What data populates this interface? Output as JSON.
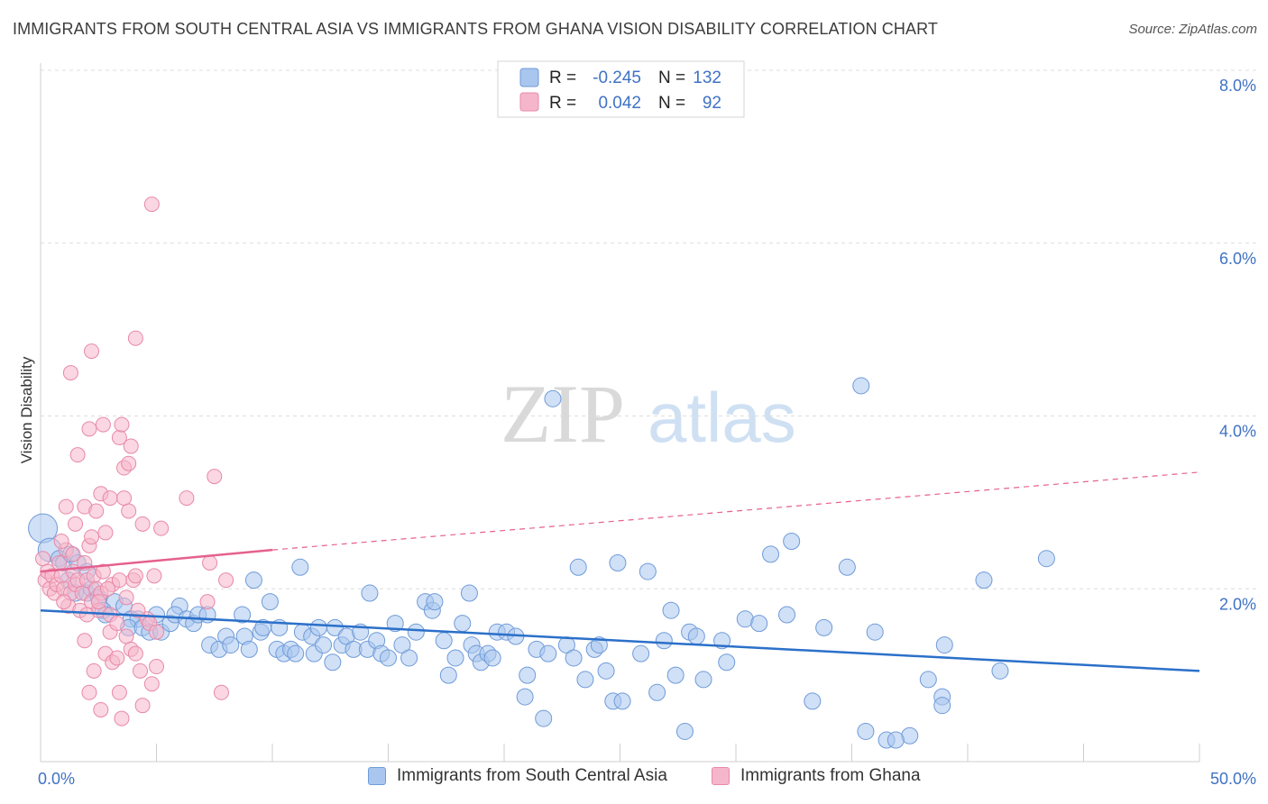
{
  "header": {
    "title": "IMMIGRANTS FROM SOUTH CENTRAL ASIA VS IMMIGRANTS FROM GHANA VISION DISABILITY CORRELATION CHART",
    "source": "Source: ZipAtlas.com"
  },
  "watermark": {
    "zip": "ZIP",
    "atlas": "atlas"
  },
  "colors": {
    "blue_fill": "#a9c6ee",
    "blue_stroke": "#6f9bd9",
    "blue_line": "#2b70c9",
    "pink_fill": "#f5b6cb",
    "pink_stroke": "#e889a8",
    "pink_line": "#e5608e",
    "accent_text": "#3f72c4"
  },
  "legend": {
    "rows": [
      {
        "r_label": "R =",
        "r_value": "-0.245",
        "n_label": "N =",
        "n_value": "132"
      },
      {
        "r_label": "R =",
        "r_value": "0.042",
        "n_label": "N =",
        "n_value": "92"
      }
    ]
  },
  "bottom_legend": {
    "series_a": "Immigrants from South Central Asia",
    "series_b": "Immigrants from Ghana"
  },
  "chart_data": {
    "type": "scatter",
    "ylabel": "Vision Disability",
    "xlim": [
      0,
      50
    ],
    "ylim": [
      0,
      8.0
    ],
    "x_tick_labels": [
      "0.0%",
      "50.0%"
    ],
    "y_ticks": [
      2.0,
      4.0,
      6.0,
      8.0
    ],
    "y_tick_labels": [
      "2.0%",
      "4.0%",
      "6.0%",
      "8.0%"
    ],
    "grid": true,
    "series": [
      {
        "name": "Immigrants from South Central Asia",
        "color": "#a9c6ee",
        "trend": {
          "x0": 0,
          "y0": 1.75,
          "x1": 50,
          "y1": 1.05
        },
        "points": [
          [
            0.1,
            2.7
          ],
          [
            0.4,
            2.45
          ],
          [
            0.8,
            2.35
          ],
          [
            1.0,
            2.3
          ],
          [
            1.3,
            2.4
          ],
          [
            1.6,
            2.3
          ],
          [
            2.0,
            2.2
          ],
          [
            1.2,
            2.1
          ],
          [
            1.5,
            1.95
          ],
          [
            2.0,
            1.95
          ],
          [
            2.2,
            2.0
          ],
          [
            2.5,
            1.9
          ],
          [
            3.2,
            1.85
          ],
          [
            2.7,
            1.75
          ],
          [
            2.8,
            1.7
          ],
          [
            3.6,
            1.8
          ],
          [
            3.9,
            1.65
          ],
          [
            4.2,
            1.65
          ],
          [
            3.8,
            1.55
          ],
          [
            4.4,
            1.55
          ],
          [
            4.7,
            1.5
          ],
          [
            5.2,
            1.5
          ],
          [
            5.0,
            1.7
          ],
          [
            5.6,
            1.6
          ],
          [
            6.0,
            1.8
          ],
          [
            5.8,
            1.7
          ],
          [
            6.3,
            1.65
          ],
          [
            6.6,
            1.6
          ],
          [
            6.8,
            1.7
          ],
          [
            7.2,
            1.7
          ],
          [
            7.3,
            1.35
          ],
          [
            7.7,
            1.3
          ],
          [
            8.0,
            1.45
          ],
          [
            8.2,
            1.35
          ],
          [
            8.7,
            1.7
          ],
          [
            8.8,
            1.45
          ],
          [
            9.0,
            1.3
          ],
          [
            9.5,
            1.5
          ],
          [
            9.6,
            1.55
          ],
          [
            9.9,
            1.85
          ],
          [
            9.2,
            2.1
          ],
          [
            10.2,
            1.3
          ],
          [
            10.5,
            1.25
          ],
          [
            10.8,
            1.3
          ],
          [
            11.0,
            1.25
          ],
          [
            10.3,
            1.55
          ],
          [
            11.3,
            1.5
          ],
          [
            11.7,
            1.45
          ],
          [
            11.8,
            1.25
          ],
          [
            12.0,
            1.55
          ],
          [
            12.2,
            1.35
          ],
          [
            12.6,
            1.15
          ],
          [
            12.7,
            1.55
          ],
          [
            13.0,
            1.35
          ],
          [
            13.2,
            1.45
          ],
          [
            13.5,
            1.3
          ],
          [
            11.2,
            2.25
          ],
          [
            13.8,
            1.5
          ],
          [
            14.1,
            1.3
          ],
          [
            14.5,
            1.4
          ],
          [
            14.7,
            1.25
          ],
          [
            15.0,
            1.2
          ],
          [
            14.2,
            1.95
          ],
          [
            15.3,
            1.6
          ],
          [
            15.6,
            1.35
          ],
          [
            15.9,
            1.2
          ],
          [
            16.2,
            1.5
          ],
          [
            16.6,
            1.85
          ],
          [
            16.9,
            1.75
          ],
          [
            17.0,
            1.85
          ],
          [
            17.4,
            1.4
          ],
          [
            17.6,
            1.0
          ],
          [
            17.9,
            1.2
          ],
          [
            18.2,
            1.6
          ],
          [
            18.5,
            1.95
          ],
          [
            18.6,
            1.35
          ],
          [
            18.8,
            1.25
          ],
          [
            19.0,
            1.15
          ],
          [
            19.3,
            1.25
          ],
          [
            19.5,
            1.2
          ],
          [
            19.7,
            1.5
          ],
          [
            20.1,
            1.5
          ],
          [
            20.5,
            1.45
          ],
          [
            20.9,
            0.75
          ],
          [
            21.0,
            1.0
          ],
          [
            21.4,
            1.3
          ],
          [
            21.7,
            0.5
          ],
          [
            21.9,
            1.25
          ],
          [
            22.1,
            4.2
          ],
          [
            22.7,
            1.35
          ],
          [
            23.0,
            1.2
          ],
          [
            23.2,
            2.25
          ],
          [
            23.5,
            0.95
          ],
          [
            23.9,
            1.3
          ],
          [
            24.1,
            1.35
          ],
          [
            24.4,
            1.05
          ],
          [
            24.7,
            0.7
          ],
          [
            24.9,
            2.3
          ],
          [
            25.1,
            0.7
          ],
          [
            25.9,
            1.25
          ],
          [
            26.2,
            2.2
          ],
          [
            26.6,
            0.8
          ],
          [
            26.9,
            1.4
          ],
          [
            27.2,
            1.75
          ],
          [
            27.4,
            1.0
          ],
          [
            27.8,
            0.35
          ],
          [
            28.0,
            1.5
          ],
          [
            28.3,
            1.45
          ],
          [
            28.6,
            0.95
          ],
          [
            29.4,
            1.4
          ],
          [
            29.6,
            1.15
          ],
          [
            30.4,
            1.65
          ],
          [
            31.0,
            1.6
          ],
          [
            31.5,
            2.4
          ],
          [
            32.2,
            1.7
          ],
          [
            32.4,
            2.55
          ],
          [
            33.3,
            0.7
          ],
          [
            33.8,
            1.55
          ],
          [
            34.8,
            2.25
          ],
          [
            35.6,
            0.35
          ],
          [
            36.0,
            1.5
          ],
          [
            37.5,
            0.3
          ],
          [
            35.4,
            4.35
          ],
          [
            36.5,
            0.25
          ],
          [
            36.9,
            0.25
          ],
          [
            38.3,
            0.95
          ],
          [
            38.9,
            0.75
          ],
          [
            38.9,
            0.65
          ],
          [
            39.0,
            1.35
          ],
          [
            40.7,
            2.1
          ],
          [
            41.4,
            1.05
          ],
          [
            43.4,
            2.35
          ]
        ]
      },
      {
        "name": "Immigrants from Ghana",
        "color": "#f5b6cb",
        "trend": {
          "x0": 0,
          "y0": 2.2,
          "x1": 10,
          "y1": 2.45,
          "dash_x1": 50,
          "dash_y1": 3.35
        },
        "points": [
          [
            0.1,
            2.35
          ],
          [
            0.2,
            2.1
          ],
          [
            0.3,
            2.2
          ],
          [
            0.4,
            2.0
          ],
          [
            0.5,
            2.15
          ],
          [
            0.6,
            1.95
          ],
          [
            0.7,
            2.05
          ],
          [
            0.8,
            2.3
          ],
          [
            0.9,
            2.15
          ],
          [
            1.0,
            2.0
          ],
          [
            1.1,
            2.45
          ],
          [
            1.2,
            1.8
          ],
          [
            1.3,
            1.95
          ],
          [
            1.4,
            2.2
          ],
          [
            1.5,
            2.05
          ],
          [
            1.6,
            2.1
          ],
          [
            1.7,
            1.75
          ],
          [
            1.8,
            1.95
          ],
          [
            1.9,
            2.3
          ],
          [
            2.0,
            2.1
          ],
          [
            2.1,
            2.5
          ],
          [
            2.2,
            1.85
          ],
          [
            2.3,
            2.15
          ],
          [
            2.4,
            2.0
          ],
          [
            2.5,
            1.75
          ],
          [
            2.6,
            1.95
          ],
          [
            2.7,
            2.2
          ],
          [
            1.1,
            2.95
          ],
          [
            1.5,
            2.75
          ],
          [
            1.9,
            2.95
          ],
          [
            2.2,
            2.6
          ],
          [
            2.4,
            2.9
          ],
          [
            2.6,
            3.1
          ],
          [
            2.8,
            2.65
          ],
          [
            3.0,
            3.05
          ],
          [
            3.1,
            2.05
          ],
          [
            3.4,
            2.1
          ],
          [
            3.6,
            3.05
          ],
          [
            3.8,
            2.9
          ],
          [
            4.0,
            2.1
          ],
          [
            4.4,
            2.75
          ],
          [
            4.1,
            2.15
          ],
          [
            1.3,
            4.5
          ],
          [
            1.6,
            3.55
          ],
          [
            2.1,
            3.85
          ],
          [
            2.2,
            4.75
          ],
          [
            2.7,
            3.9
          ],
          [
            3.4,
            3.75
          ],
          [
            3.6,
            3.4
          ],
          [
            3.8,
            3.45
          ],
          [
            3.9,
            3.65
          ],
          [
            3.5,
            3.9
          ],
          [
            4.1,
            4.9
          ],
          [
            6.3,
            3.05
          ],
          [
            7.5,
            3.3
          ],
          [
            4.8,
            6.45
          ],
          [
            1.9,
            1.4
          ],
          [
            2.3,
            1.05
          ],
          [
            2.1,
            0.8
          ],
          [
            2.6,
            0.6
          ],
          [
            2.8,
            1.25
          ],
          [
            3.0,
            1.5
          ],
          [
            3.1,
            1.15
          ],
          [
            3.3,
            1.2
          ],
          [
            3.4,
            0.8
          ],
          [
            3.5,
            0.5
          ],
          [
            3.7,
            1.45
          ],
          [
            3.9,
            1.3
          ],
          [
            4.1,
            1.25
          ],
          [
            4.3,
            1.05
          ],
          [
            4.4,
            0.65
          ],
          [
            4.6,
            1.65
          ],
          [
            4.8,
            0.9
          ],
          [
            5.0,
            1.1
          ],
          [
            4.7,
            1.6
          ],
          [
            4.9,
            2.15
          ],
          [
            5.0,
            1.5
          ],
          [
            7.3,
            2.3
          ],
          [
            7.2,
            1.85
          ],
          [
            8.0,
            2.1
          ],
          [
            7.8,
            0.8
          ],
          [
            3.0,
            1.7
          ],
          [
            3.3,
            1.6
          ],
          [
            2.0,
            1.7
          ],
          [
            2.5,
            1.85
          ],
          [
            3.7,
            1.9
          ],
          [
            4.2,
            1.75
          ],
          [
            1.4,
            2.4
          ],
          [
            0.9,
            2.55
          ],
          [
            1.0,
            1.85
          ],
          [
            2.9,
            2.0
          ],
          [
            5.2,
            2.7
          ]
        ]
      }
    ]
  }
}
